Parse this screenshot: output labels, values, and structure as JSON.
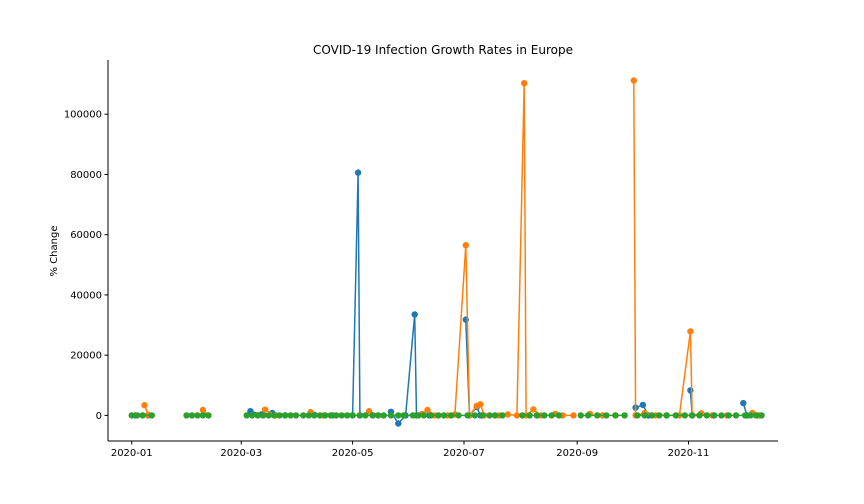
{
  "chart_data": {
    "type": "scatter",
    "title": "COVID-19 Infection Growth Rates in Europe",
    "xlabel": "",
    "ylabel": "% Change",
    "x_axis_type": "date",
    "xlim": [
      "2019-12-19",
      "2020-12-20"
    ],
    "ylim": [
      -8500,
      118000
    ],
    "x_ticks": [
      "2020-01-01",
      "2020-03-01",
      "2020-05-01",
      "2020-07-01",
      "2020-09-01",
      "2020-11-01"
    ],
    "y_ticks": [
      0,
      20000,
      40000,
      60000,
      80000,
      100000
    ],
    "grid": false,
    "legend": "none",
    "markers_with_lines": true,
    "series": [
      {
        "color": "#1f77b4",
        "points": [
          [
            "2020-01-03",
            0
          ],
          [
            "2020-01-10",
            0
          ],
          [
            "2020-03-06",
            1400
          ],
          [
            "2020-03-12",
            300
          ],
          [
            "2020-03-18",
            800
          ],
          [
            "2020-03-25",
            0
          ],
          [
            "2020-04-10",
            200
          ],
          [
            "2020-04-20",
            0
          ],
          [
            "2020-05-01",
            0
          ],
          [
            "2020-05-04",
            80600
          ],
          [
            "2020-05-05",
            0
          ],
          [
            "2020-05-12",
            0
          ],
          [
            "2020-05-22",
            1200
          ],
          [
            "2020-05-26",
            -2700
          ],
          [
            "2020-05-30",
            0
          ],
          [
            "2020-06-04",
            33500
          ],
          [
            "2020-06-05",
            0
          ],
          [
            "2020-06-12",
            0
          ],
          [
            "2020-07-02",
            31800
          ],
          [
            "2020-07-04",
            0
          ],
          [
            "2020-07-08",
            2800
          ],
          [
            "2020-07-10",
            0
          ],
          [
            "2020-08-10",
            0
          ],
          [
            "2020-09-15",
            0
          ],
          [
            "2020-10-03",
            2600
          ],
          [
            "2020-10-07",
            3500
          ],
          [
            "2020-10-10",
            0
          ],
          [
            "2020-11-02",
            8300
          ],
          [
            "2020-11-03",
            0
          ],
          [
            "2020-11-15",
            0
          ],
          [
            "2020-12-01",
            4100
          ],
          [
            "2020-12-03",
            0
          ],
          [
            "2020-12-09",
            0
          ]
        ]
      },
      {
        "color": "#ff7f0e",
        "points": [
          [
            "2020-01-08",
            3400
          ],
          [
            "2020-01-10",
            200
          ],
          [
            "2020-02-09",
            1800
          ],
          [
            "2020-02-12",
            0
          ],
          [
            "2020-03-14",
            1900
          ],
          [
            "2020-03-20",
            0
          ],
          [
            "2020-04-08",
            1100
          ],
          [
            "2020-04-15",
            0
          ],
          [
            "2020-05-10",
            1400
          ],
          [
            "2020-05-15",
            0
          ],
          [
            "2020-06-08",
            500
          ],
          [
            "2020-06-11",
            1800
          ],
          [
            "2020-06-15",
            0
          ],
          [
            "2020-06-22",
            0
          ],
          [
            "2020-06-26",
            300
          ],
          [
            "2020-07-02",
            56500
          ],
          [
            "2020-07-04",
            0
          ],
          [
            "2020-07-08",
            3200
          ],
          [
            "2020-07-10",
            3700
          ],
          [
            "2020-07-12",
            0
          ],
          [
            "2020-07-20",
            0
          ],
          [
            "2020-07-25",
            300
          ],
          [
            "2020-07-30",
            0
          ],
          [
            "2020-08-03",
            110300
          ],
          [
            "2020-08-04",
            0
          ],
          [
            "2020-08-08",
            2000
          ],
          [
            "2020-08-12",
            0
          ],
          [
            "2020-08-20",
            500
          ],
          [
            "2020-08-24",
            0
          ],
          [
            "2020-08-30",
            0
          ],
          [
            "2020-09-08",
            500
          ],
          [
            "2020-09-15",
            0
          ],
          [
            "2020-09-22",
            0
          ],
          [
            "2020-10-02",
            111200
          ],
          [
            "2020-10-03",
            0
          ],
          [
            "2020-10-08",
            800
          ],
          [
            "2020-10-14",
            0
          ],
          [
            "2020-10-20",
            0
          ],
          [
            "2020-10-27",
            0
          ],
          [
            "2020-11-02",
            27900
          ],
          [
            "2020-11-03",
            0
          ],
          [
            "2020-11-08",
            700
          ],
          [
            "2020-11-14",
            0
          ],
          [
            "2020-11-22",
            0
          ],
          [
            "2020-12-06",
            800
          ],
          [
            "2020-12-10",
            0
          ]
        ]
      },
      {
        "color": "#2ca02c",
        "points": [
          [
            "2020-01-01",
            0
          ],
          [
            "2020-01-04",
            0
          ],
          [
            "2020-01-07",
            0
          ],
          [
            "2020-01-12",
            0
          ],
          [
            "2020-01-31",
            0
          ],
          [
            "2020-02-03",
            0
          ],
          [
            "2020-02-06",
            0
          ],
          [
            "2020-02-09",
            0
          ],
          [
            "2020-02-12",
            0
          ],
          [
            "2020-03-04",
            0
          ],
          [
            "2020-03-07",
            0
          ],
          [
            "2020-03-10",
            0
          ],
          [
            "2020-03-13",
            0
          ],
          [
            "2020-03-16",
            0
          ],
          [
            "2020-03-19",
            0
          ],
          [
            "2020-03-22",
            0
          ],
          [
            "2020-03-25",
            0
          ],
          [
            "2020-03-28",
            0
          ],
          [
            "2020-03-31",
            0
          ],
          [
            "2020-04-04",
            0
          ],
          [
            "2020-04-07",
            0
          ],
          [
            "2020-04-10",
            0
          ],
          [
            "2020-04-13",
            0
          ],
          [
            "2020-04-16",
            0
          ],
          [
            "2020-04-19",
            0
          ],
          [
            "2020-04-22",
            0
          ],
          [
            "2020-04-25",
            0
          ],
          [
            "2020-04-28",
            0
          ],
          [
            "2020-05-01",
            0
          ],
          [
            "2020-05-05",
            0
          ],
          [
            "2020-05-08",
            0
          ],
          [
            "2020-05-12",
            0
          ],
          [
            "2020-05-15",
            0
          ],
          [
            "2020-05-18",
            0
          ],
          [
            "2020-05-22",
            0
          ],
          [
            "2020-05-26",
            0
          ],
          [
            "2020-05-29",
            0
          ],
          [
            "2020-06-03",
            0
          ],
          [
            "2020-06-06",
            0
          ],
          [
            "2020-06-09",
            0
          ],
          [
            "2020-06-13",
            0
          ],
          [
            "2020-06-17",
            0
          ],
          [
            "2020-06-20",
            0
          ],
          [
            "2020-06-24",
            0
          ],
          [
            "2020-06-28",
            0
          ],
          [
            "2020-07-03",
            0
          ],
          [
            "2020-07-07",
            0
          ],
          [
            "2020-07-11",
            0
          ],
          [
            "2020-07-15",
            0
          ],
          [
            "2020-07-18",
            0
          ],
          [
            "2020-07-22",
            0
          ],
          [
            "2020-08-02",
            0
          ],
          [
            "2020-08-06",
            0
          ],
          [
            "2020-08-10",
            0
          ],
          [
            "2020-08-14",
            0
          ],
          [
            "2020-08-18",
            0
          ],
          [
            "2020-08-22",
            0
          ],
          [
            "2020-09-03",
            0
          ],
          [
            "2020-09-07",
            0
          ],
          [
            "2020-09-12",
            0
          ],
          [
            "2020-09-17",
            0
          ],
          [
            "2020-09-22",
            0
          ],
          [
            "2020-09-27",
            0
          ],
          [
            "2020-10-04",
            0
          ],
          [
            "2020-10-08",
            0
          ],
          [
            "2020-10-12",
            0
          ],
          [
            "2020-10-16",
            0
          ],
          [
            "2020-10-20",
            0
          ],
          [
            "2020-10-25",
            0
          ],
          [
            "2020-10-30",
            0
          ],
          [
            "2020-11-03",
            0
          ],
          [
            "2020-11-07",
            0
          ],
          [
            "2020-11-11",
            0
          ],
          [
            "2020-11-15",
            0
          ],
          [
            "2020-11-19",
            0
          ],
          [
            "2020-11-23",
            0
          ],
          [
            "2020-11-27",
            0
          ],
          [
            "2020-12-02",
            0
          ],
          [
            "2020-12-05",
            0
          ],
          [
            "2020-12-08",
            0
          ],
          [
            "2020-12-11",
            0
          ]
        ]
      }
    ]
  }
}
